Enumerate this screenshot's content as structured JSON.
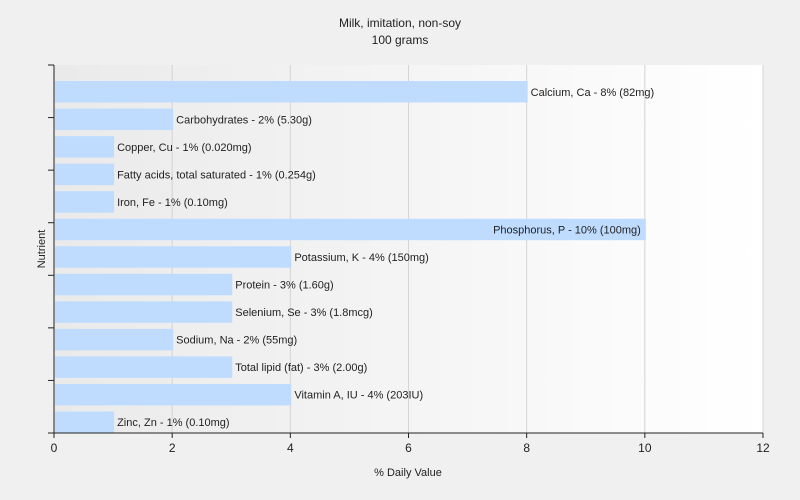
{
  "chart_data": {
    "type": "bar",
    "orientation": "horizontal",
    "title": "Milk, imitation, non-soy",
    "subtitle": "100 grams",
    "xlabel": "% Daily Value",
    "ylabel": "Nutrient",
    "xlim": [
      0,
      12
    ],
    "xticks": [
      0,
      2,
      4,
      6,
      8,
      10,
      12
    ],
    "grid": true,
    "bar_color": "#bfdcff",
    "categories": [
      "Calcium, Ca",
      "Carbohydrates",
      "Copper, Cu",
      "Fatty acids, total saturated",
      "Iron, Fe",
      "Phosphorus, P",
      "Potassium, K",
      "Protein",
      "Selenium, Se",
      "Sodium, Na",
      "Total lipid (fat)",
      "Vitamin A, IU",
      "Zinc, Zn"
    ],
    "values": [
      8,
      2,
      1,
      1,
      1,
      10,
      4,
      3,
      3,
      2,
      3,
      4,
      1
    ],
    "labels": [
      "Calcium, Ca - 8% (82mg)",
      "Carbohydrates - 2% (5.30g)",
      "Copper, Cu - 1% (0.020mg)",
      "Fatty acids, total saturated - 1% (0.254g)",
      "Iron, Fe - 1% (0.10mg)",
      "Phosphorus, P - 10% (100mg)",
      "Potassium, K - 4% (150mg)",
      "Protein - 3% (1.60g)",
      "Selenium, Se - 3% (1.8mcg)",
      "Sodium, Na - 2% (55mg)",
      "Total lipid (fat) - 3% (2.00g)",
      "Vitamin A, IU - 4% (203IU)",
      "Zinc, Zn - 1% (0.10mg)"
    ]
  }
}
